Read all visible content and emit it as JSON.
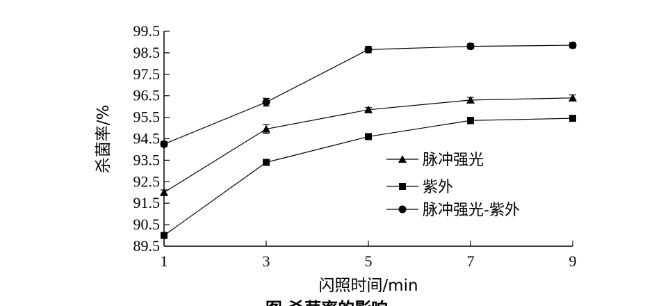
{
  "chart_data": {
    "type": "line",
    "title": "",
    "caption": "图 杀菌率的影响",
    "xlabel": "闪照时间/min",
    "ylabel": "杀菌率/%",
    "x": [
      1,
      3,
      5,
      7,
      9
    ],
    "xlim": [
      1,
      9
    ],
    "ylim": [
      89.5,
      99.5
    ],
    "x_ticks": [
      "1",
      "3",
      "5",
      "7",
      "9"
    ],
    "y_ticks": [
      "89.5",
      "90.5",
      "91.5",
      "92.5",
      "93.5",
      "94.5",
      "95.5",
      "96.5",
      "97.5",
      "98.5",
      "99.5"
    ],
    "grid": false,
    "legend_position": "center-right",
    "series": [
      {
        "name": "脉冲强光",
        "marker": "triangle",
        "values": [
          92.0,
          94.95,
          95.85,
          96.3,
          96.4
        ],
        "errors": [
          0.12,
          0.2,
          0.1,
          0.12,
          0.14
        ]
      },
      {
        "name": "紫外",
        "marker": "square",
        "values": [
          90.0,
          93.4,
          94.6,
          95.35,
          95.45
        ],
        "errors": [
          0.1,
          0.1,
          0.1,
          0.15,
          0.1
        ]
      },
      {
        "name": "脉冲强光-紫外",
        "marker": "circle",
        "values": [
          94.25,
          96.2,
          98.65,
          98.8,
          98.85
        ],
        "errors": [
          0.12,
          0.18,
          0.15,
          0.12,
          0.12
        ]
      }
    ]
  }
}
